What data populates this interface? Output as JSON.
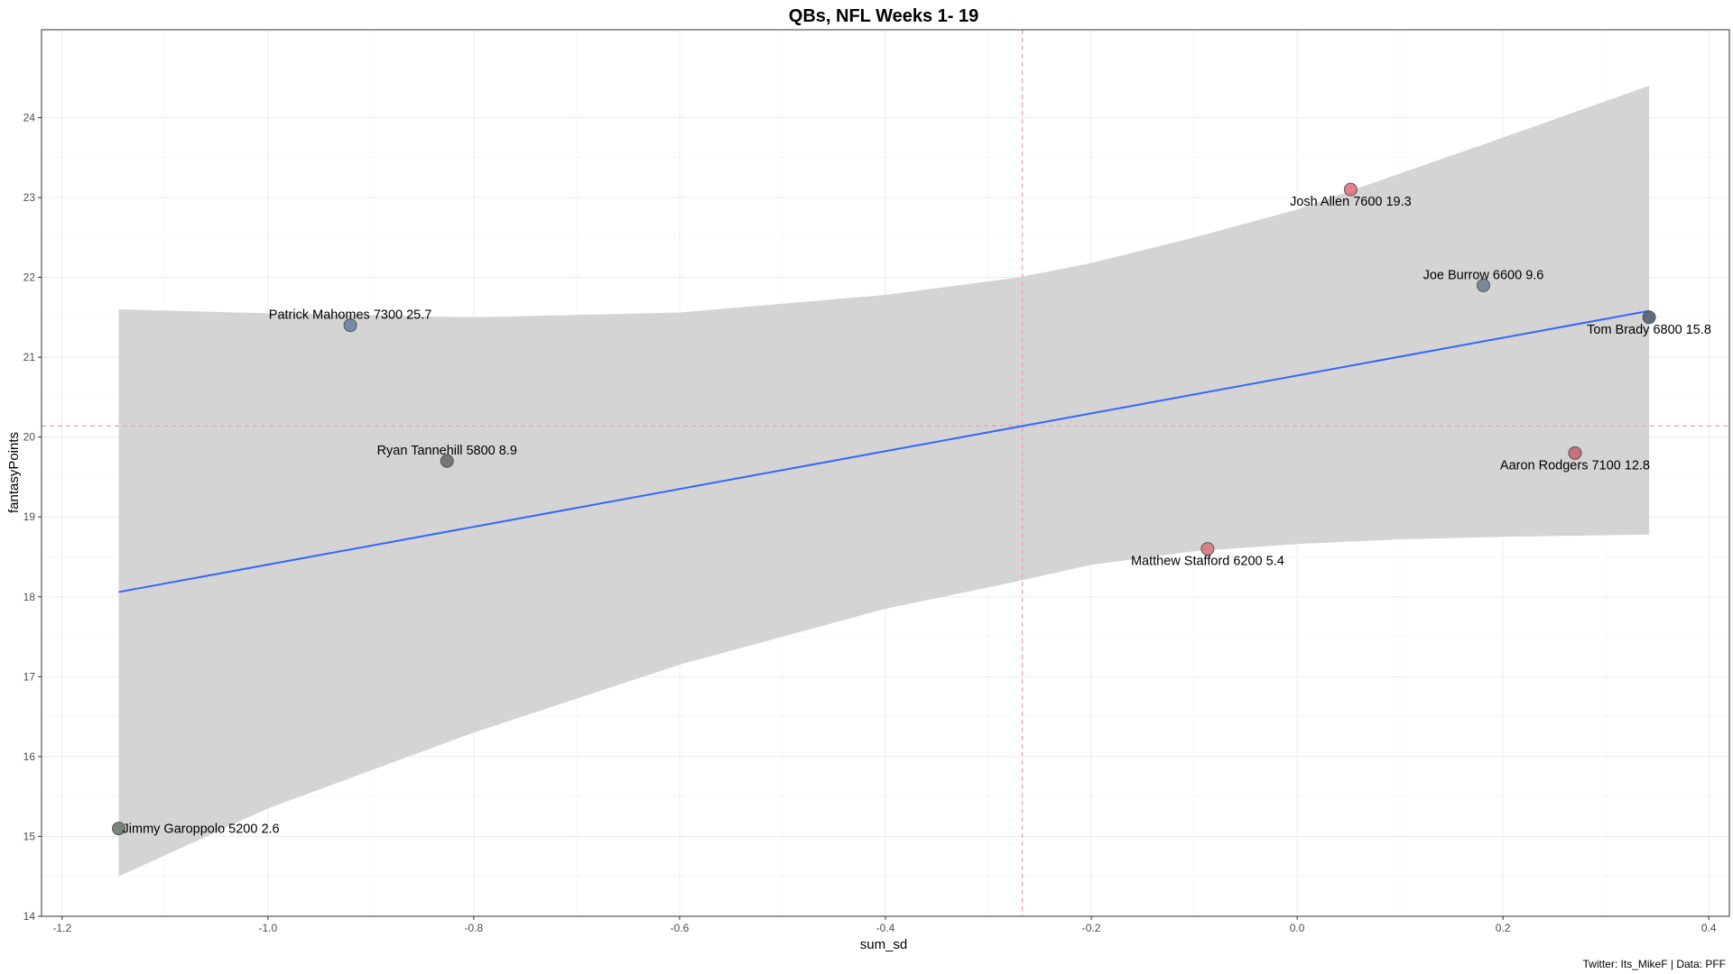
{
  "chart_data": {
    "type": "scatter",
    "title": "QBs, NFL Weeks 1- 19",
    "xlabel": "sum_sd",
    "ylabel": "fantasyPoints",
    "caption": "Twitter: Its_MikeF | Data: PFF",
    "xlim": [
      -1.22,
      0.42
    ],
    "ylim": [
      14,
      25.1
    ],
    "x_ticks": [
      -1.2,
      -1.0,
      -0.8,
      -0.6,
      -0.4,
      -0.2,
      0.0,
      0.2,
      0.4
    ],
    "x_tick_labels": [
      "-1.2",
      "-1.0",
      "-0.8",
      "-0.6",
      "-0.4",
      "-0.2",
      "0.0",
      "0.2",
      "0.4"
    ],
    "y_ticks": [
      14,
      15,
      16,
      17,
      18,
      19,
      20,
      21,
      22,
      23,
      24
    ],
    "y_tick_labels": [
      "14",
      "15",
      "16",
      "17",
      "18",
      "19",
      "20",
      "21",
      "22",
      "23",
      "24"
    ],
    "grid": true,
    "legend": "none",
    "points": [
      {
        "label": "Josh Allen 7600 19.3",
        "x": 0.052,
        "y": 23.1,
        "color": "#e0727f",
        "label_pos": "below"
      },
      {
        "label": "Joe Burrow 6600 9.6",
        "x": 0.181,
        "y": 21.9,
        "color": "#6d7f94",
        "label_pos": "above"
      },
      {
        "label": "Tom Brady 6800 15.8",
        "x": 0.342,
        "y": 21.5,
        "color": "#4f5d6b",
        "label_pos": "below"
      },
      {
        "label": "Patrick Mahomes 7300 25.7",
        "x": -0.92,
        "y": 21.4,
        "color": "#6a82a9",
        "label_pos": "above"
      },
      {
        "label": "Ryan Tannehill 5800 8.9",
        "x": -0.826,
        "y": 19.7,
        "color": "#6b6b6b",
        "label_pos": "above"
      },
      {
        "label": "Aaron Rodgers 7100 12.8",
        "x": 0.27,
        "y": 19.8,
        "color": "#c26670",
        "label_pos": "below"
      },
      {
        "label": "Matthew Stafford 6200 5.4",
        "x": -0.087,
        "y": 18.6,
        "color": "#d9757a",
        "label_pos": "below"
      },
      {
        "label": "Jimmy Garoppolo 5200 2.6",
        "x": -1.145,
        "y": 15.1,
        "color": "#6a7a70",
        "label_pos": "right"
      }
    ],
    "regression": {
      "x": [
        -1.145,
        0.342
      ],
      "y": [
        18.06,
        21.58
      ],
      "color": "#3366ff"
    },
    "confidence_band": {
      "x": [
        -1.145,
        -1.0,
        -0.8,
        -0.6,
        -0.4,
        -0.27,
        -0.2,
        -0.1,
        0.0,
        0.1,
        0.2,
        0.342
      ],
      "lower": [
        14.5,
        15.35,
        16.3,
        17.15,
        17.85,
        18.2,
        18.4,
        18.57,
        18.66,
        18.72,
        18.75,
        18.78
      ],
      "upper": [
        21.6,
        21.55,
        21.5,
        21.56,
        21.78,
        22.0,
        22.18,
        22.5,
        22.85,
        23.3,
        23.75,
        24.4
      ],
      "color": "#d4d4d4"
    },
    "reference_lines": [
      {
        "axis": "x",
        "value": -0.267,
        "style": "dashed",
        "color": "#e8a0b0"
      },
      {
        "axis": "y",
        "value": 20.14,
        "style": "dashed",
        "color": "#e8a0b0"
      }
    ]
  }
}
